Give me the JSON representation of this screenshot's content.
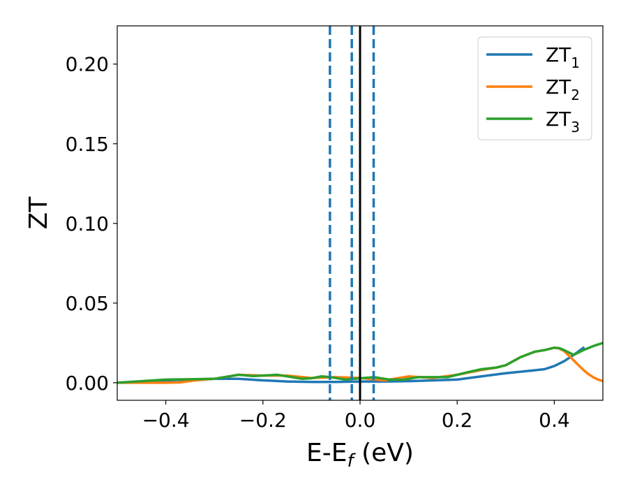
{
  "chart_data": {
    "type": "line",
    "xlabel": "E-E",
    "xlabel_sub": "f",
    "xlabel_unit": " (eV)",
    "ylabel": "ZT",
    "xlim": [
      -0.5,
      0.5
    ],
    "ylim": [
      -0.011,
      0.224
    ],
    "xticks": [
      {
        "value": -0.4,
        "label": "−0.4"
      },
      {
        "value": -0.2,
        "label": "−0.2"
      },
      {
        "value": 0.0,
        "label": "0.0"
      },
      {
        "value": 0.2,
        "label": "0.2"
      },
      {
        "value": 0.4,
        "label": "0.4"
      }
    ],
    "yticks": [
      {
        "value": 0.0,
        "label": "0.00"
      },
      {
        "value": 0.05,
        "label": "0.05"
      },
      {
        "value": 0.1,
        "label": "0.10"
      },
      {
        "value": 0.15,
        "label": "0.15"
      },
      {
        "value": 0.2,
        "label": "0.20"
      }
    ],
    "grid": false,
    "legend_position": "top-right",
    "vlines": [
      {
        "x": 0.0,
        "style": "solid",
        "color": "#000000"
      },
      {
        "x": -0.062,
        "style": "dashed",
        "color": "#1f77b4"
      },
      {
        "x": -0.017,
        "style": "dashed",
        "color": "#1f77b4"
      },
      {
        "x": 0.028,
        "style": "dashed",
        "color": "#1f77b4"
      }
    ],
    "series": [
      {
        "name": "ZT",
        "sub": "1",
        "color": "#1f77b4",
        "x": [
          -0.5,
          -0.45,
          -0.4,
          -0.35,
          -0.3,
          -0.25,
          -0.2,
          -0.15,
          -0.1,
          -0.05,
          0.0,
          0.05,
          0.1,
          0.15,
          0.2,
          0.25,
          0.3,
          0.35,
          0.38,
          0.4,
          0.42,
          0.44,
          0.46
        ],
        "y": [
          0.0,
          0.0008,
          0.0015,
          0.002,
          0.0025,
          0.0025,
          0.0015,
          0.0008,
          0.0005,
          0.0005,
          0.0008,
          0.0008,
          0.001,
          0.0015,
          0.002,
          0.004,
          0.006,
          0.0075,
          0.0085,
          0.0105,
          0.0135,
          0.0175,
          0.022
        ]
      },
      {
        "name": "ZT",
        "sub": "2",
        "color": "#ff7f0e",
        "x": [
          -0.5,
          -0.45,
          -0.4,
          -0.37,
          -0.34,
          -0.3,
          -0.25,
          -0.2,
          -0.15,
          -0.1,
          -0.05,
          0.0,
          0.05,
          0.1,
          0.15,
          0.2,
          0.25,
          0.28,
          0.3,
          0.33,
          0.36,
          0.38,
          0.4,
          0.41,
          0.42,
          0.43,
          0.44,
          0.45,
          0.46,
          0.47,
          0.48,
          0.49,
          0.5
        ],
        "y": [
          0.0,
          0.0,
          0.0,
          0.0002,
          0.0015,
          0.0025,
          0.005,
          0.0045,
          0.0045,
          0.003,
          0.0035,
          0.003,
          0.0015,
          0.004,
          0.003,
          0.005,
          0.008,
          0.0095,
          0.011,
          0.016,
          0.0195,
          0.0205,
          0.022,
          0.0215,
          0.02,
          0.017,
          0.014,
          0.011,
          0.008,
          0.0055,
          0.0035,
          0.002,
          0.001
        ]
      },
      {
        "name": "ZT",
        "sub": "3",
        "color": "#2ca02c",
        "x": [
          -0.5,
          -0.45,
          -0.4,
          -0.35,
          -0.3,
          -0.27,
          -0.25,
          -0.22,
          -0.2,
          -0.17,
          -0.15,
          -0.12,
          -0.1,
          -0.08,
          -0.06,
          -0.03,
          0.0,
          0.03,
          0.06,
          0.09,
          0.12,
          0.15,
          0.18,
          0.2,
          0.22,
          0.25,
          0.28,
          0.3,
          0.33,
          0.36,
          0.38,
          0.4,
          0.41,
          0.42,
          0.44,
          0.46,
          0.48,
          0.5
        ],
        "y": [
          0.0,
          0.001,
          0.002,
          0.0022,
          0.0025,
          0.004,
          0.005,
          0.0042,
          0.0045,
          0.005,
          0.004,
          0.0025,
          0.0028,
          0.004,
          0.0035,
          0.002,
          0.0028,
          0.0035,
          0.002,
          0.002,
          0.0035,
          0.0035,
          0.0035,
          0.005,
          0.0065,
          0.0085,
          0.0095,
          0.011,
          0.016,
          0.0195,
          0.0205,
          0.022,
          0.0218,
          0.0205,
          0.0175,
          0.0205,
          0.023,
          0.025
        ]
      }
    ]
  }
}
